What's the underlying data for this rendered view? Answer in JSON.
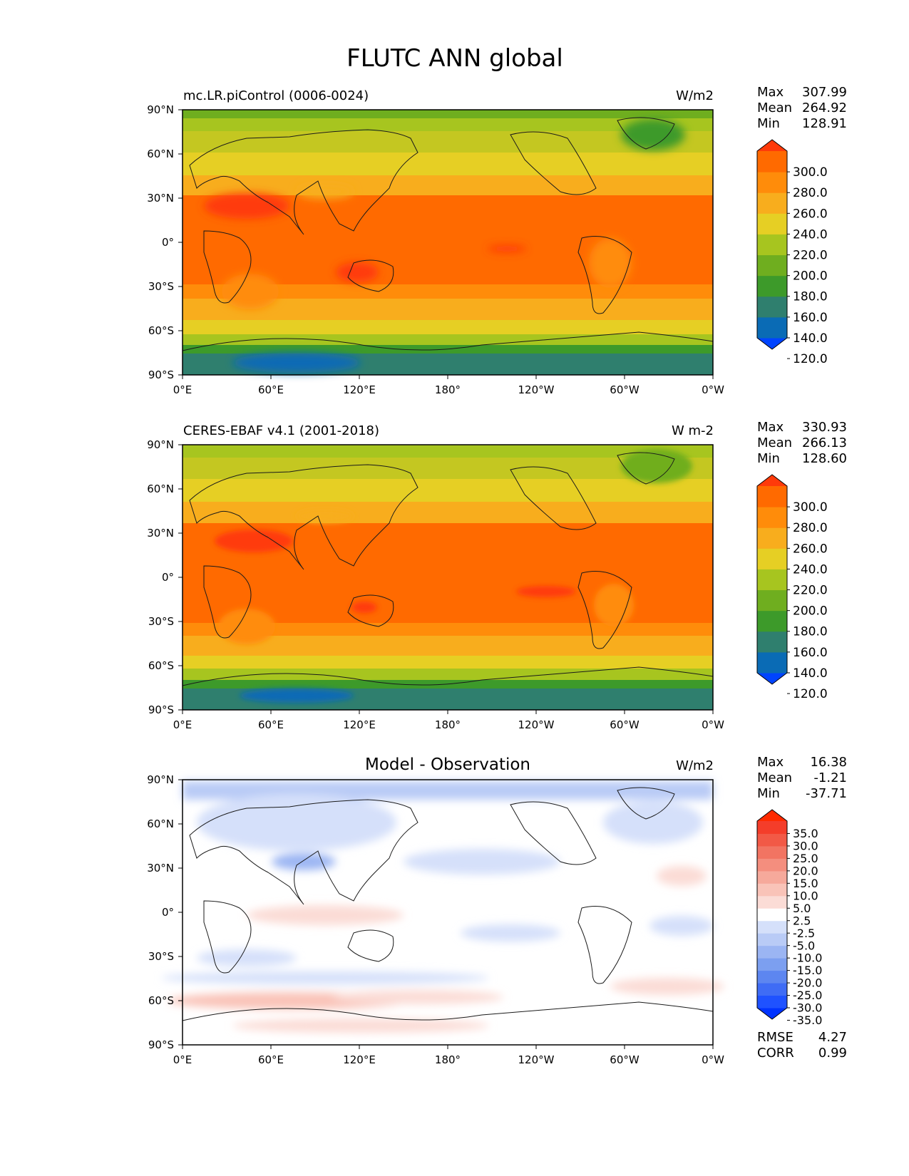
{
  "figure_title": "FLUTC ANN global",
  "lat_ticks": [
    "90°N",
    "60°N",
    "30°N",
    "0°",
    "30°S",
    "60°S",
    "90°S"
  ],
  "lon_ticks": [
    "0°E",
    "60°E",
    "120°E",
    "180°",
    "120°W",
    "60°W",
    "0°W"
  ],
  "chart_data": [
    {
      "type": "heatmap",
      "title": "mc.LR.piControl (0006-0024)",
      "units": "W/m2",
      "stats": {
        "max_label": "Max",
        "max": "307.99",
        "mean_label": "Mean",
        "mean": "264.92",
        "min_label": "Min",
        "min": "128.91"
      },
      "x_range": [
        0,
        360
      ],
      "y_range": [
        -90,
        90
      ],
      "colorbar": {
        "levels": [
          "300.0",
          "280.0",
          "260.0",
          "240.0",
          "220.0",
          "200.0",
          "180.0",
          "160.0",
          "140.0",
          "120.0"
        ],
        "colors": [
          "#0044ff",
          "#0a6bb5",
          "#2f7f6e",
          "#3d9a2a",
          "#6fae1f",
          "#a7c51f",
          "#e6cf24",
          "#f8ad1d",
          "#ff8c0a",
          "#ff6a00",
          "#ff3a0a"
        ]
      }
    },
    {
      "type": "heatmap",
      "title": "CERES-EBAF v4.1 (2001-2018)",
      "units": "W m-2",
      "stats": {
        "max_label": "Max",
        "max": "330.93",
        "mean_label": "Mean",
        "mean": "266.13",
        "min_label": "Min",
        "min": "128.60"
      },
      "x_range": [
        0,
        360
      ],
      "y_range": [
        -90,
        90
      ],
      "colorbar": {
        "levels": [
          "300.0",
          "280.0",
          "260.0",
          "240.0",
          "220.0",
          "200.0",
          "180.0",
          "160.0",
          "140.0",
          "120.0"
        ],
        "colors": [
          "#0044ff",
          "#0a6bb5",
          "#2f7f6e",
          "#3d9a2a",
          "#6fae1f",
          "#a7c51f",
          "#e6cf24",
          "#f8ad1d",
          "#ff8c0a",
          "#ff6a00",
          "#ff3a0a"
        ]
      }
    },
    {
      "type": "heatmap",
      "title": "Model - Observation",
      "units": "W/m2",
      "stats": {
        "max_label": "Max",
        "max": "16.38",
        "mean_label": "Mean",
        "mean": "-1.21",
        "min_label": "Min",
        "min": "-37.71"
      },
      "extra_stats": {
        "rmse_label": "RMSE",
        "rmse": "4.27",
        "corr_label": "CORR",
        "corr": "0.99"
      },
      "x_range": [
        0,
        360
      ],
      "y_range": [
        -90,
        90
      ],
      "colorbar": {
        "levels": [
          "35.0",
          "30.0",
          "25.0",
          "20.0",
          "15.0",
          "10.0",
          "5.0",
          "2.5",
          "-2.5",
          "-5.0",
          "-10.0",
          "-15.0",
          "-20.0",
          "-25.0",
          "-30.0",
          "-35.0"
        ],
        "colors": [
          "#0033ff",
          "#1f52ff",
          "#3f6cf5",
          "#5d86f0",
          "#7c9ff0",
          "#9bb5f3",
          "#b9cbf6",
          "#d5e0fa",
          "#ffffff",
          "#fbdcd6",
          "#f9c3b8",
          "#f6a99b",
          "#f48e7e",
          "#f27462",
          "#f25946",
          "#f43d2a",
          "#ff2a00"
        ]
      }
    }
  ]
}
